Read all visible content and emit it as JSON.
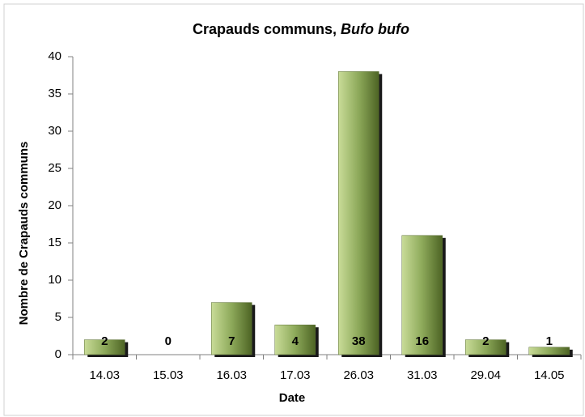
{
  "chart_data": {
    "type": "bar",
    "title": {
      "text": "Crapauds communs,",
      "species": "Bufo bufo"
    },
    "x_label": "Date",
    "y_label": "Nombre de Crapauds communs",
    "categories": [
      "14.03",
      "15.03",
      "16.03",
      "17.03",
      "26.03",
      "31.03",
      "29.04",
      "14.05"
    ],
    "values": [
      2,
      0,
      7,
      4,
      38,
      16,
      2,
      1
    ],
    "color": "#8da95a",
    "ylim": [
      0,
      40
    ],
    "yticks": [
      0,
      5,
      10,
      15,
      20,
      25,
      30,
      35,
      40
    ],
    "grid": false
  }
}
